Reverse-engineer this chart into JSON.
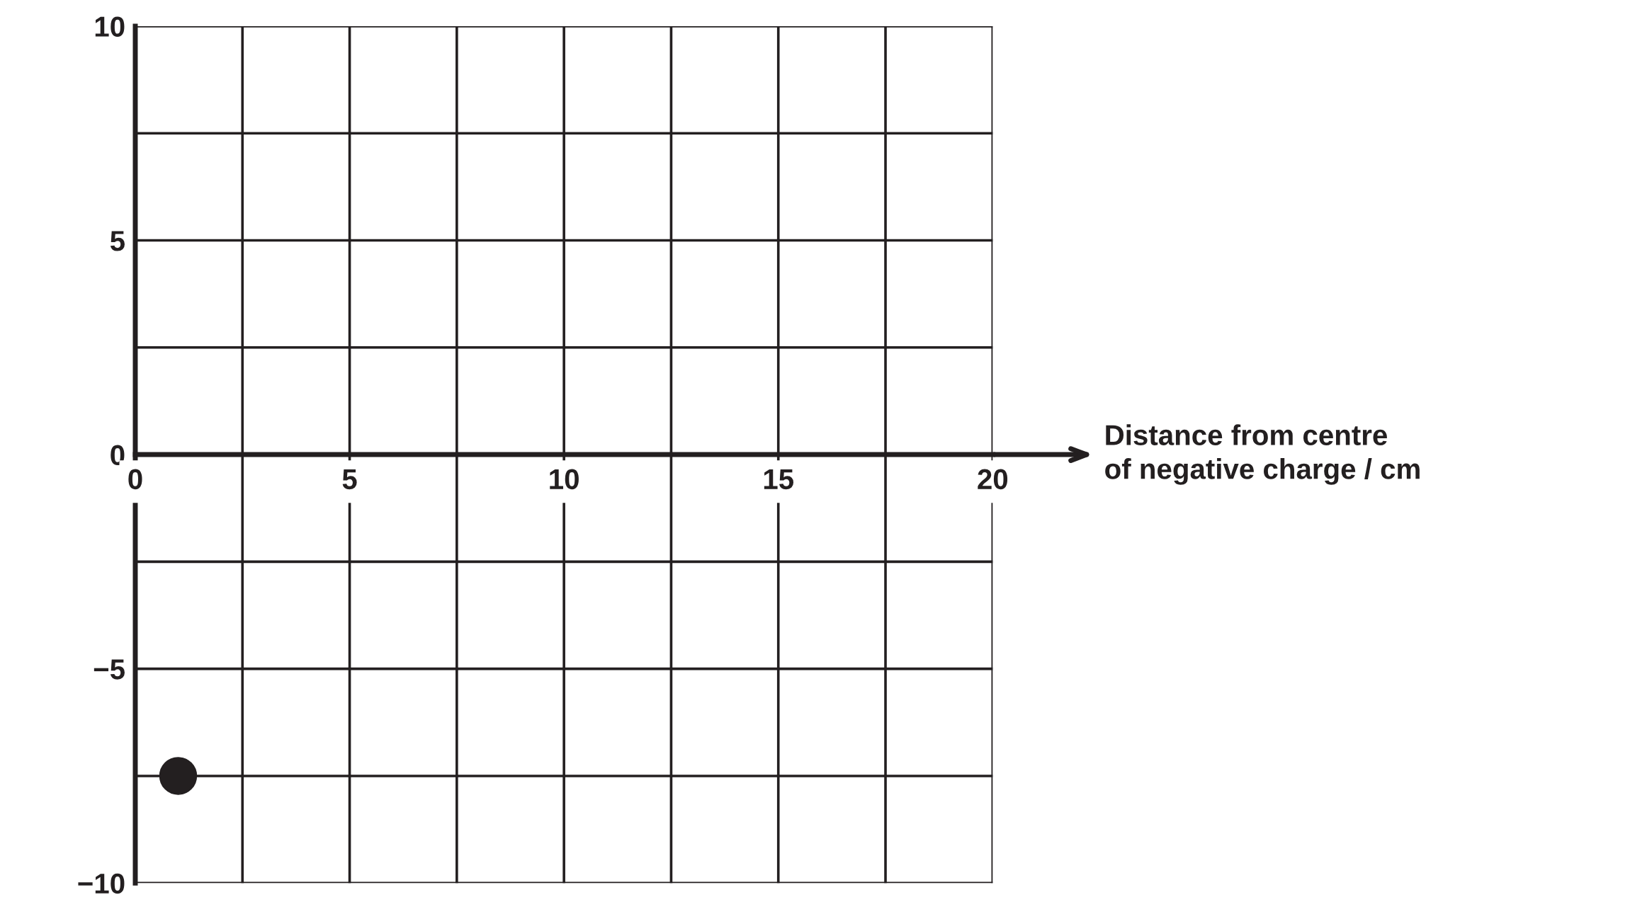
{
  "chart_data": {
    "type": "scatter",
    "xlabel": "Distance from centre\nof negative charge / cm",
    "x": [
      1
    ],
    "values": [
      -7.5
    ],
    "color": "#231f20",
    "marker": "circle",
    "xlim": [
      0,
      20
    ],
    "ylim": [
      -10,
      10
    ],
    "xticks": [
      0,
      {
        "value": 2.5,
        "label": null
      },
      5,
      {
        "value": 7.5,
        "label": null
      },
      10,
      {
        "value": 12.5,
        "label": null
      },
      15,
      {
        "value": 17.5,
        "label": null
      },
      20
    ],
    "yticks": [
      {
        "value": -10,
        "label": "−10"
      },
      {
        "value": -7.5,
        "label": null
      },
      {
        "value": -5,
        "label": "−5"
      },
      {
        "value": -2.5,
        "label": null
      },
      0,
      {
        "value": 2.5,
        "label": null
      },
      5,
      {
        "value": 7.5,
        "label": null
      },
      10
    ],
    "grid": true
  }
}
